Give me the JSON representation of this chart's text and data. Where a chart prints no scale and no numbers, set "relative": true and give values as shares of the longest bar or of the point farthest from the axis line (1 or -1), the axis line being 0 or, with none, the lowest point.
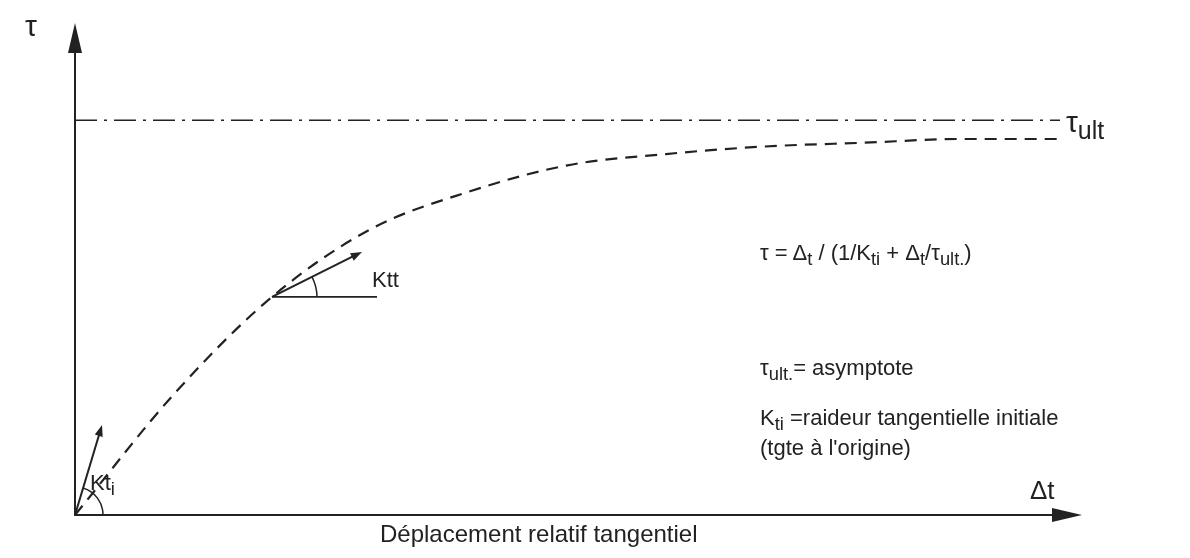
{
  "chart_data": {
    "type": "line",
    "relative": true,
    "ylabel": "τ",
    "xlabel": "Δt",
    "categories": [
      null,
      null,
      null,
      null,
      null,
      null,
      null,
      null,
      null,
      null,
      null
    ],
    "series": [
      {
        "color": "#222222",
        "values": [
          0,
          0.32,
          0.58,
          0.76,
          0.86,
          0.93,
          0.96,
          0.98,
          0.99,
          1.0,
          1.0
        ]
      }
    ],
    "line_style": "dashed",
    "marker": "none",
    "grid": false,
    "legend": false,
    "ref_lines": [
      {
        "axis": "y",
        "value": 1.05,
        "label": "τ$_{ult}$",
        "color": "#222222",
        "line_style": "dashdot"
      }
    ],
    "annotations": [
      "τ = Δ$_{t}$ / (1/K$_{ti}$ + Δ$_{t}$/τ$_{ult.}$)",
      "τ$_{ult.}$= asymptote",
      "K$_{ti}$ =raideur tangentielle initiale\n(tgte à l'origine)",
      "Ktt",
      "Kt$_{i}$",
      "Déplacement relatif tangentiel"
    ]
  }
}
